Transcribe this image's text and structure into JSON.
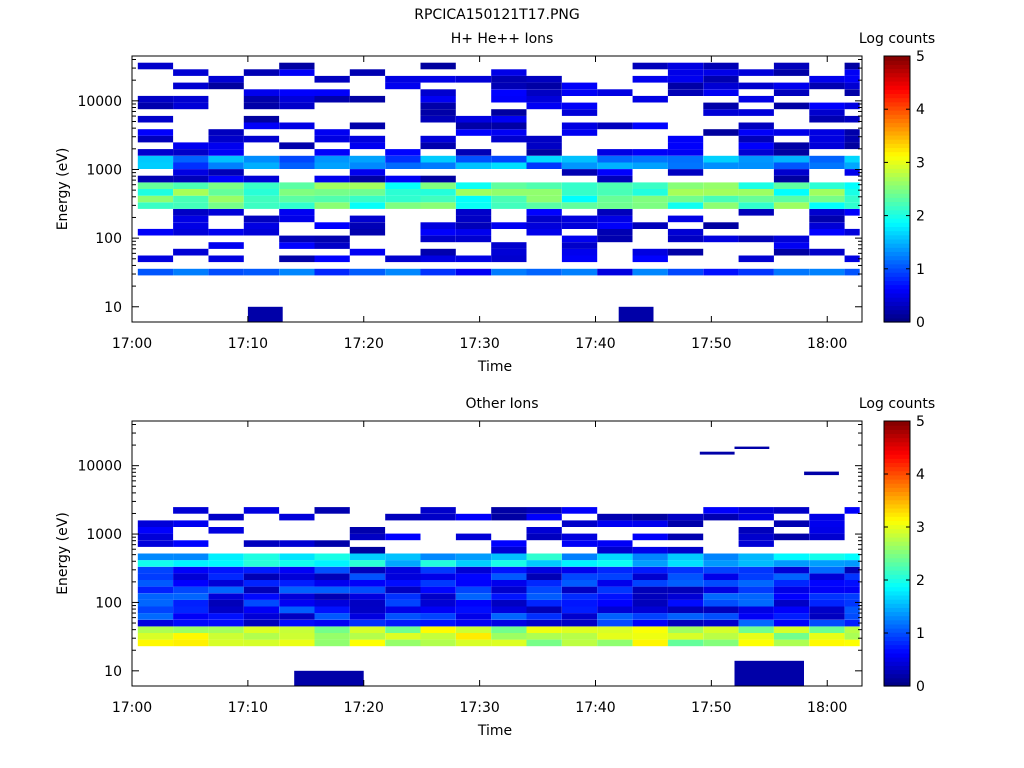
{
  "figure_title": "RPCICA150121T17.PNG",
  "chart_data": [
    {
      "type": "heatmap",
      "title": "H+ He++ Ions",
      "xlabel": "Time",
      "ylabel": "Energy (eV)",
      "x_range": [
        "17:00",
        "18:03"
      ],
      "x_ticks": [
        "17:00",
        "17:10",
        "17:20",
        "17:30",
        "17:40",
        "17:50",
        "18:00"
      ],
      "y_scale": "log",
      "y_range": [
        6,
        45000
      ],
      "y_ticks": [
        "10",
        "100",
        "1000",
        "10000"
      ],
      "colorbar": {
        "label": "Log counts",
        "range": [
          0,
          5
        ],
        "ticks": [
          "0",
          "1",
          "2",
          "3",
          "4",
          "5"
        ]
      },
      "grid": false,
      "bands": [
        {
          "emin": 1000,
          "emax": 1600,
          "level": 1.3
        },
        {
          "emin": 250,
          "emax": 620,
          "level": 2.3
        },
        {
          "emin": 27,
          "emax": 38,
          "level": 0.9
        }
      ],
      "sparse_emax": 40000,
      "notable": [
        {
          "time": "17:10-17:13",
          "emin": 6,
          "emax": 10,
          "level": 0.2
        },
        {
          "time": "17:42-17:45",
          "emin": 6,
          "emax": 10,
          "level": 0.2
        }
      ]
    },
    {
      "type": "heatmap",
      "title": "Other Ions",
      "xlabel": "Time",
      "ylabel": "Energy (eV)",
      "x_range": [
        "17:00",
        "18:03"
      ],
      "x_ticks": [
        "17:00",
        "17:10",
        "17:20",
        "17:30",
        "17:40",
        "17:50",
        "18:00"
      ],
      "y_scale": "log",
      "y_range": [
        6,
        45000
      ],
      "y_ticks": [
        "10",
        "100",
        "1000",
        "10000"
      ],
      "colorbar": {
        "label": "Log counts",
        "range": [
          0,
          5
        ],
        "ticks": [
          "0",
          "1",
          "2",
          "3",
          "4",
          "5"
        ]
      },
      "grid": false,
      "bands": [
        {
          "emin": 300,
          "emax": 500,
          "level": 1.7
        },
        {
          "emin": 40,
          "emax": 320,
          "level": 0.7
        },
        {
          "emin": 22,
          "emax": 42,
          "level": 2.8
        }
      ],
      "sparse_emax": 2600,
      "notable": [
        {
          "time": "17:49-17:52",
          "emin": 14500,
          "emax": 16000,
          "level": 0.2
        },
        {
          "time": "17:52-17:55",
          "emin": 17500,
          "emax": 19000,
          "level": 0.2
        },
        {
          "time": "17:58-18:01",
          "emin": 7300,
          "emax": 8200,
          "level": 0.2
        },
        {
          "time": "17:14-17:20",
          "emin": 6,
          "emax": 10,
          "level": 0.2
        },
        {
          "time": "17:52-17:58",
          "emin": 6,
          "emax": 14,
          "level": 0.2
        }
      ]
    }
  ]
}
